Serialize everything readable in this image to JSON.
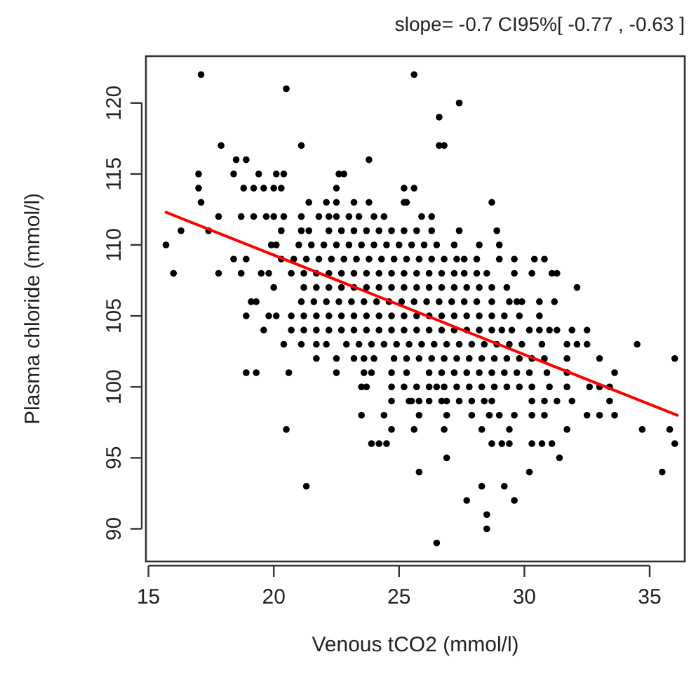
{
  "chart_data": {
    "type": "scatter",
    "title": "slope= -0.7 CI95%[ -0.77 , -0.63 ]",
    "xlabel": "Venous tCO2 (mmol/l)",
    "ylabel": "Plasma chloride (mmol/l)",
    "xlim": [
      14.9,
      36.4
    ],
    "ylim": [
      87.7,
      123.3
    ],
    "xticks": [
      15,
      20,
      25,
      30,
      35
    ],
    "yticks": [
      90,
      95,
      100,
      105,
      110,
      115,
      120
    ],
    "grid": false,
    "series": [
      {
        "color": "#000000",
        "marker": "circle",
        "x": [
          17.1,
          25.6,
          20.5,
          27.4,
          26.6,
          17.9,
          21.1,
          26.6,
          26.8,
          18.5,
          18.9,
          23.8,
          17.0,
          18.4,
          19.4,
          20.1,
          20.4,
          22.6,
          22.8,
          17.0,
          18.8,
          19.2,
          19.6,
          20.0,
          20.3,
          22.5,
          25.2,
          25.6,
          17.1,
          21.4,
          22.1,
          22.5,
          23.2,
          23.8,
          25.2,
          25.3,
          28.7,
          17.8,
          18.7,
          19.2,
          19.7,
          20.0,
          20.4,
          21.1,
          21.8,
          22.2,
          22.5,
          23.0,
          23.4,
          24.0,
          24.4,
          25.9,
          26.3,
          16.3,
          17.4,
          20.3,
          21.1,
          21.4,
          22.2,
          22.7,
          23.2,
          23.7,
          24.2,
          24.7,
          25.2,
          25.7,
          26.3,
          27.4,
          28.9,
          15.7,
          19.9,
          20.1,
          21.0,
          21.5,
          22.0,
          22.5,
          23.0,
          23.5,
          24.0,
          24.5,
          25.0,
          25.5,
          26.0,
          26.5,
          27.2,
          28.2,
          29.0,
          18.4,
          18.9,
          20.3,
          20.8,
          21.3,
          21.8,
          22.3,
          22.8,
          23.3,
          23.8,
          24.3,
          24.8,
          25.3,
          25.8,
          26.3,
          26.8,
          27.3,
          27.6,
          28.1,
          29.0,
          29.6,
          30.4,
          30.8,
          16.0,
          17.8,
          18.7,
          19.5,
          19.8,
          20.7,
          21.2,
          21.7,
          22.2,
          22.7,
          23.2,
          23.7,
          24.2,
          24.7,
          25.2,
          25.7,
          26.2,
          26.7,
          27.2,
          27.6,
          28.1,
          28.5,
          29.6,
          30.3,
          31.1,
          31.3,
          20.0,
          21.2,
          21.7,
          22.2,
          22.7,
          23.2,
          23.7,
          24.2,
          24.7,
          25.2,
          25.7,
          26.2,
          26.7,
          27.2,
          27.7,
          28.2,
          28.7,
          29.3,
          32.1,
          19.1,
          19.3,
          21.1,
          21.6,
          22.1,
          22.6,
          23.1,
          23.6,
          24.1,
          24.6,
          25.1,
          25.6,
          26.1,
          26.6,
          27.1,
          27.6,
          28.1,
          28.7,
          29.4,
          29.7,
          29.9,
          30.6,
          31.2,
          18.9,
          19.8,
          20.1,
          20.7,
          21.2,
          21.7,
          22.2,
          22.7,
          23.2,
          23.7,
          24.2,
          24.7,
          25.2,
          25.7,
          26.2,
          26.7,
          27.2,
          27.7,
          28.2,
          28.7,
          29.2,
          29.8,
          30.6,
          19.6,
          20.7,
          21.2,
          21.7,
          22.2,
          22.7,
          23.2,
          23.7,
          24.2,
          24.7,
          25.2,
          25.7,
          26.2,
          26.7,
          27.2,
          27.7,
          28.2,
          28.7,
          29.1,
          29.5,
          30.2,
          30.6,
          31.0,
          31.3,
          31.9,
          32.5,
          20.4,
          21.1,
          21.7,
          22.1,
          22.9,
          23.4,
          23.9,
          24.4,
          24.9,
          25.4,
          25.9,
          26.4,
          26.9,
          27.4,
          27.9,
          28.4,
          28.9,
          29.4,
          29.9,
          30.7,
          31.7,
          32.1,
          32.5,
          34.5,
          21.7,
          22.5,
          23.2,
          23.6,
          24.0,
          24.8,
          25.3,
          25.8,
          26.3,
          26.8,
          27.3,
          27.8,
          28.3,
          28.8,
          29.3,
          29.8,
          30.3,
          30.8,
          31.7,
          33.0,
          36.0,
          18.9,
          19.3,
          20.6,
          22.5,
          23.6,
          23.9,
          24.7,
          25.3,
          26.2,
          26.7,
          27.2,
          27.7,
          28.2,
          28.7,
          29.2,
          29.7,
          30.2,
          30.9,
          31.7,
          33.6,
          23.5,
          23.7,
          24.7,
          25.2,
          25.7,
          26.2,
          26.5,
          26.8,
          27.3,
          27.8,
          28.3,
          28.8,
          29.3,
          29.8,
          30.3,
          31.0,
          31.7,
          32.6,
          33.0,
          33.4,
          24.7,
          25.4,
          25.5,
          25.8,
          26.2,
          26.7,
          26.9,
          27.4,
          27.9,
          28.4,
          28.7,
          30.3,
          30.8,
          31.3,
          31.9,
          33.4,
          23.5,
          24.4,
          25.8,
          26.9,
          27.9,
          28.6,
          29.0,
          29.6,
          30.3,
          30.8,
          32.5,
          33.0,
          33.6,
          20.5,
          24.7,
          25.6,
          26.8,
          28.3,
          29.4,
          31.7,
          34.7,
          35.8,
          23.9,
          24.2,
          24.5,
          28.7,
          29.1,
          29.4,
          30.3,
          30.7,
          31.1,
          36.0,
          26.9,
          31.4,
          25.8,
          30.2,
          35.5,
          21.3,
          28.3,
          29.2,
          27.7,
          29.6,
          28.5,
          28.5,
          26.5
        ],
        "values": [
          122,
          122,
          121,
          120,
          119,
          117,
          117,
          117,
          117,
          116,
          116,
          116,
          115,
          115,
          115,
          115,
          115,
          115,
          115,
          114,
          114,
          114,
          114,
          114,
          114,
          114,
          114,
          114,
          113,
          113,
          113,
          113,
          113,
          113,
          113,
          113,
          113,
          112,
          112,
          112,
          112,
          112,
          112,
          112,
          112,
          112,
          112,
          112,
          112,
          112,
          112,
          112,
          112,
          111,
          111,
          111,
          111,
          111,
          111,
          111,
          111,
          111,
          111,
          111,
          111,
          111,
          111,
          111,
          111,
          110,
          110,
          110,
          110,
          110,
          110,
          110,
          110,
          110,
          110,
          110,
          110,
          110,
          110,
          110,
          110,
          110,
          110,
          109,
          109,
          109,
          109,
          109,
          109,
          109,
          109,
          109,
          109,
          109,
          109,
          109,
          109,
          109,
          109,
          109,
          109,
          109,
          109,
          109,
          109,
          109,
          108,
          108,
          108,
          108,
          108,
          108,
          108,
          108,
          108,
          108,
          108,
          108,
          108,
          108,
          108,
          108,
          108,
          108,
          108,
          108,
          108,
          108,
          108,
          108,
          108,
          108,
          107,
          107,
          107,
          107,
          107,
          107,
          107,
          107,
          107,
          107,
          107,
          107,
          107,
          107,
          107,
          107,
          107,
          107,
          107,
          106,
          106,
          106,
          106,
          106,
          106,
          106,
          106,
          106,
          106,
          106,
          106,
          106,
          106,
          106,
          106,
          106,
          106,
          106,
          106,
          106,
          106,
          106,
          105,
          105,
          105,
          105,
          105,
          105,
          105,
          105,
          105,
          105,
          105,
          105,
          105,
          105,
          105,
          105,
          105,
          105,
          105,
          105,
          105,
          105,
          105,
          104,
          104,
          104,
          104,
          104,
          104,
          104,
          104,
          104,
          104,
          104,
          104,
          104,
          104,
          104,
          104,
          104,
          104,
          104,
          104,
          104,
          104,
          104,
          104,
          104,
          104,
          103,
          103,
          103,
          103,
          103,
          103,
          103,
          103,
          103,
          103,
          103,
          103,
          103,
          103,
          103,
          103,
          103,
          103,
          103,
          103,
          103,
          103,
          103,
          103,
          102,
          102,
          102,
          102,
          102,
          102,
          102,
          102,
          102,
          102,
          102,
          102,
          102,
          102,
          102,
          102,
          102,
          102,
          102,
          102,
          102,
          101,
          101,
          101,
          101,
          101,
          101,
          101,
          101,
          101,
          101,
          101,
          101,
          101,
          101,
          101,
          101,
          101,
          101,
          101,
          101,
          100,
          100,
          100,
          100,
          100,
          100,
          100,
          100,
          100,
          100,
          100,
          100,
          100,
          100,
          100,
          100,
          100,
          100,
          100,
          100,
          99,
          99,
          99,
          99,
          99,
          99,
          99,
          99,
          99,
          99,
          99,
          99,
          99,
          99,
          99,
          99,
          98,
          98,
          98,
          98,
          98,
          98,
          98,
          98,
          98,
          98,
          98,
          98,
          98,
          97,
          97,
          97,
          97,
          97,
          97,
          97,
          97,
          97,
          96,
          96,
          96,
          96,
          96,
          96,
          96,
          96,
          96,
          96,
          95,
          95,
          94,
          94,
          94,
          93,
          93,
          93,
          92,
          92,
          91,
          90,
          89
        ]
      },
      {
        "type": "line",
        "color": "#ff0000",
        "x": [
          15.7,
          36.1
        ],
        "values": [
          112.3,
          98.0
        ]
      }
    ]
  }
}
